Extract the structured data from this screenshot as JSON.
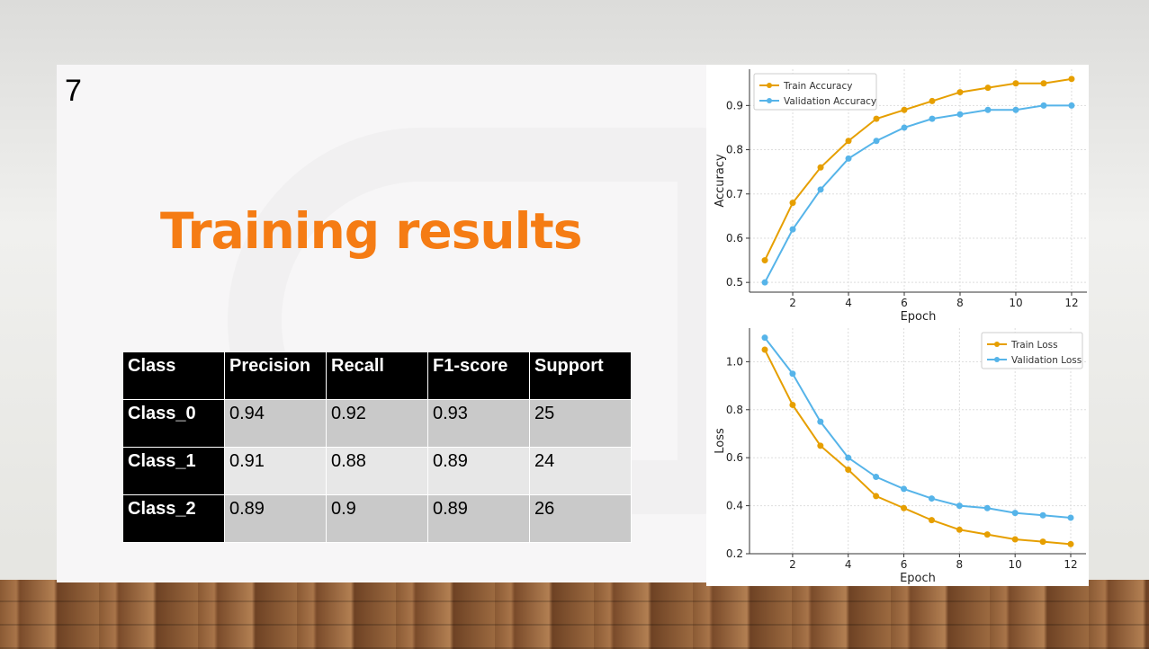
{
  "slide": {
    "number": "7",
    "title": "Training results"
  },
  "table": {
    "headers": [
      "Class",
      "Precision",
      "Recall",
      "F1-score",
      "Support"
    ],
    "rows": [
      [
        "Class_0",
        "0.94",
        "0.92",
        "0.93",
        "25"
      ],
      [
        "Class_1",
        "0.91",
        "0.88",
        "0.89",
        "24"
      ],
      [
        "Class_2",
        "0.89",
        "0.9",
        "0.89",
        "26"
      ]
    ]
  },
  "colors": {
    "train": "#e69f00",
    "validation": "#56b4e9",
    "title": "#f57c14"
  },
  "chart_data": [
    {
      "type": "line",
      "xlabel": "Epoch",
      "ylabel": "Accuracy",
      "x": [
        1,
        2,
        3,
        4,
        5,
        6,
        7,
        8,
        9,
        10,
        11,
        12
      ],
      "xticks": [
        2,
        4,
        6,
        8,
        10,
        12
      ],
      "yticks": [
        0.5,
        0.6,
        0.7,
        0.8,
        0.9
      ],
      "ytick_labels": [
        "0.5",
        "0.6",
        "0.7",
        "0.8",
        "0.9"
      ],
      "xlim": [
        0.45,
        12.55
      ],
      "ylim": [
        0.478,
        0.982
      ],
      "grid": true,
      "legend": "top-left",
      "series": [
        {
          "name": "Train Accuracy",
          "values": [
            0.55,
            0.68,
            0.76,
            0.82,
            0.87,
            0.89,
            0.91,
            0.93,
            0.94,
            0.95,
            0.95,
            0.96
          ]
        },
        {
          "name": "Validation Accuracy",
          "values": [
            0.5,
            0.62,
            0.71,
            0.78,
            0.82,
            0.85,
            0.87,
            0.88,
            0.89,
            0.89,
            0.9,
            0.9
          ]
        }
      ]
    },
    {
      "type": "line",
      "xlabel": "Epoch",
      "ylabel": "Loss",
      "x": [
        1,
        2,
        3,
        4,
        5,
        6,
        7,
        8,
        9,
        10,
        11,
        12
      ],
      "xticks": [
        2,
        4,
        6,
        8,
        10,
        12
      ],
      "yticks": [
        0.2,
        0.4,
        0.6,
        0.8,
        1.0
      ],
      "ytick_labels": [
        "0.2",
        "0.4",
        "0.6",
        "0.8",
        "1.0"
      ],
      "xlim": [
        0.45,
        12.55
      ],
      "ylim": [
        0.2,
        1.14
      ],
      "grid": true,
      "legend": "top-right",
      "series": [
        {
          "name": "Train Loss",
          "values": [
            1.05,
            0.82,
            0.65,
            0.55,
            0.44,
            0.39,
            0.34,
            0.3,
            0.28,
            0.26,
            0.25,
            0.24
          ]
        },
        {
          "name": "Validation Loss",
          "values": [
            1.1,
            0.95,
            0.75,
            0.6,
            0.52,
            0.47,
            0.43,
            0.4,
            0.39,
            0.37,
            0.36,
            0.35
          ]
        }
      ]
    }
  ]
}
